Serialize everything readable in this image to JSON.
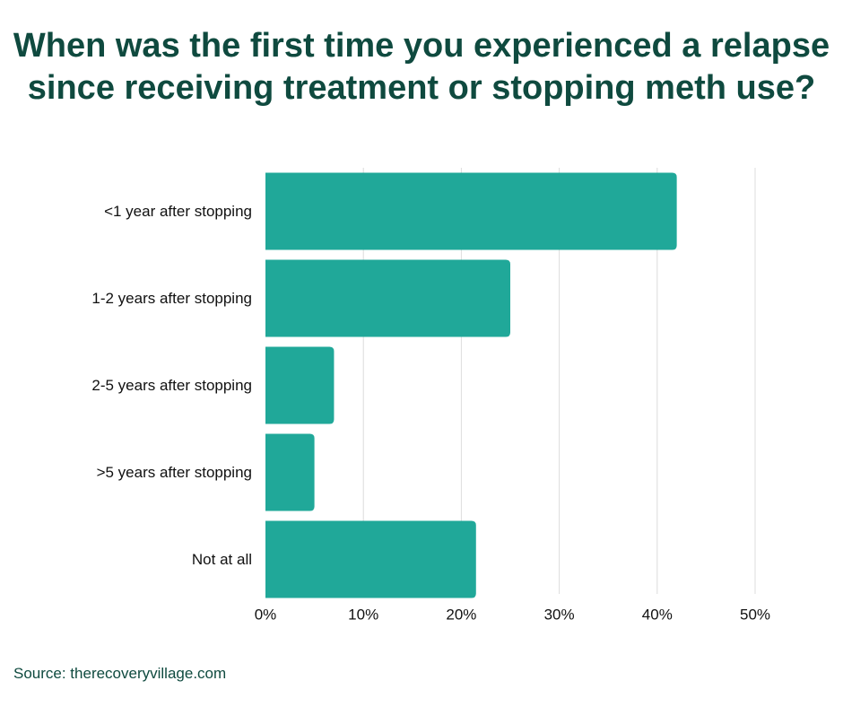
{
  "title": {
    "line1": "When was the first time you experienced a relapse",
    "line2": "since receiving treatment or stopping meth use?"
  },
  "source": "Source: therecoveryvillage.com",
  "colors": {
    "bar": "#20a899",
    "title": "#0f4a3f",
    "grid": "#dcdcdc",
    "text": "#111111"
  },
  "chart_data": {
    "type": "bar",
    "orientation": "horizontal",
    "categories": [
      "<1 year after stopping",
      "1-2 years after stopping",
      "2-5 years after stopping",
      ">5 years after stopping",
      "Not at all"
    ],
    "values": [
      42,
      25,
      7,
      5,
      21.5
    ],
    "unit": "%",
    "xlim": [
      0,
      50
    ],
    "xticks": [
      0,
      10,
      20,
      30,
      40,
      50
    ],
    "xtick_labels": [
      "0%",
      "10%",
      "20%",
      "30%",
      "40%",
      "50%"
    ],
    "grid": true,
    "legend": "none"
  }
}
